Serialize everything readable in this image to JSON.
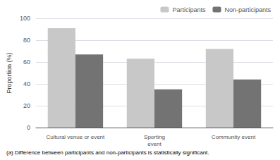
{
  "chart_data": {
    "type": "bar",
    "categories": [
      "Cultural venue or event",
      "Sporting\nevent",
      "Community event"
    ],
    "series": [
      {
        "name": "Participants",
        "color": "#c8c8c8",
        "values": [
          91,
          63,
          72
        ]
      },
      {
        "name": "Non-participants",
        "color": "#737373",
        "values": [
          67,
          35,
          44
        ]
      }
    ],
    "ylabel": "Proportion (%)",
    "ylim": [
      0,
      100
    ],
    "yticks": [
      0,
      20,
      40,
      60,
      80,
      100
    ],
    "grid": true,
    "legend": "upper right",
    "footnote": "(a) Difference between participants and non-participants is statistically significant."
  }
}
